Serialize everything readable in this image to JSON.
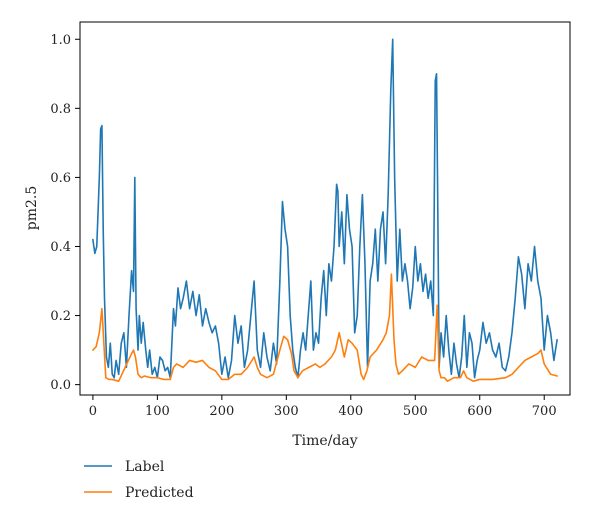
{
  "chart_data": {
    "type": "line",
    "title": "",
    "xlabel": "Time/day",
    "ylabel": "pm2.5",
    "xlim": [
      -20,
      740
    ],
    "ylim": [
      -0.03,
      1.05
    ],
    "xticks": [
      0,
      100,
      200,
      300,
      400,
      500,
      600,
      700
    ],
    "yticks": [
      0.0,
      0.2,
      0.4,
      0.6,
      0.8,
      1.0
    ],
    "xtick_labels": [
      "0",
      "100",
      "200",
      "300",
      "400",
      "500",
      "600",
      "700"
    ],
    "ytick_labels": [
      "0.0",
      "0.2",
      "0.4",
      "0.6",
      "0.8",
      "1.0"
    ],
    "grid": false,
    "legend": "below-left",
    "series": [
      {
        "name": "Label",
        "color": "#1f77b4",
        "x": [
          0,
          3,
          6,
          10,
          12,
          14,
          16,
          18,
          21,
          24,
          27,
          30,
          33,
          36,
          40,
          44,
          48,
          52,
          56,
          60,
          63,
          65,
          67,
          70,
          72,
          75,
          78,
          82,
          85,
          88,
          92,
          96,
          100,
          104,
          108,
          112,
          116,
          120,
          125,
          128,
          132,
          136,
          140,
          145,
          150,
          155,
          160,
          165,
          170,
          175,
          180,
          185,
          190,
          195,
          200,
          205,
          210,
          215,
          220,
          225,
          230,
          235,
          240,
          245,
          250,
          255,
          260,
          265,
          270,
          275,
          280,
          285,
          290,
          294,
          298,
          302,
          306,
          310,
          314,
          318,
          322,
          326,
          330,
          334,
          338,
          342,
          346,
          350,
          354,
          358,
          362,
          366,
          370,
          374,
          378,
          380,
          382,
          386,
          390,
          394,
          398,
          402,
          406,
          410,
          414,
          418,
          422,
          426,
          430,
          434,
          438,
          442,
          446,
          450,
          454,
          458,
          462,
          465,
          468,
          472,
          476,
          480,
          484,
          488,
          492,
          496,
          500,
          504,
          508,
          512,
          516,
          520,
          524,
          528,
          531,
          533,
          535,
          537,
          540,
          544,
          548,
          552,
          556,
          560,
          564,
          568,
          572,
          576,
          580,
          584,
          588,
          592,
          596,
          600,
          605,
          610,
          615,
          620,
          625,
          630,
          635,
          640,
          645,
          650,
          655,
          660,
          665,
          670,
          675,
          680,
          685,
          690,
          695,
          700,
          705,
          710,
          715,
          720
        ],
        "values": [
          0.42,
          0.38,
          0.4,
          0.6,
          0.74,
          0.75,
          0.45,
          0.25,
          0.08,
          0.05,
          0.12,
          0.03,
          0.02,
          0.07,
          0.03,
          0.12,
          0.15,
          0.05,
          0.2,
          0.33,
          0.27,
          0.6,
          0.22,
          0.1,
          0.2,
          0.12,
          0.18,
          0.1,
          0.05,
          0.1,
          0.03,
          0.05,
          0.02,
          0.08,
          0.07,
          0.04,
          0.05,
          0.02,
          0.22,
          0.17,
          0.28,
          0.22,
          0.25,
          0.3,
          0.22,
          0.27,
          0.2,
          0.26,
          0.17,
          0.22,
          0.18,
          0.15,
          0.17,
          0.12,
          0.03,
          0.08,
          0.02,
          0.07,
          0.2,
          0.12,
          0.17,
          0.05,
          0.1,
          0.2,
          0.3,
          0.1,
          0.05,
          0.15,
          0.08,
          0.04,
          0.12,
          0.06,
          0.3,
          0.53,
          0.45,
          0.4,
          0.2,
          0.1,
          0.05,
          0.02,
          0.1,
          0.15,
          0.1,
          0.2,
          0.3,
          0.1,
          0.15,
          0.12,
          0.25,
          0.33,
          0.2,
          0.35,
          0.3,
          0.4,
          0.58,
          0.56,
          0.4,
          0.5,
          0.35,
          0.55,
          0.45,
          0.4,
          0.15,
          0.2,
          0.4,
          0.55,
          0.35,
          0.05,
          0.3,
          0.35,
          0.45,
          0.3,
          0.45,
          0.5,
          0.35,
          0.55,
          0.85,
          1.0,
          0.6,
          0.3,
          0.45,
          0.3,
          0.35,
          0.3,
          0.22,
          0.28,
          0.4,
          0.3,
          0.35,
          0.27,
          0.32,
          0.25,
          0.3,
          0.2,
          0.88,
          0.9,
          0.5,
          0.05,
          0.15,
          0.08,
          0.2,
          0.1,
          0.03,
          0.12,
          0.06,
          0.02,
          0.08,
          0.2,
          0.05,
          0.15,
          0.12,
          0.02,
          0.07,
          0.1,
          0.18,
          0.12,
          0.15,
          0.1,
          0.08,
          0.12,
          0.05,
          0.04,
          0.08,
          0.15,
          0.25,
          0.37,
          0.32,
          0.22,
          0.35,
          0.3,
          0.4,
          0.3,
          0.25,
          0.1,
          0.2,
          0.15,
          0.07,
          0.13
        ]
      },
      {
        "name": "Predicted",
        "color": "#ff7f0e",
        "x": [
          0,
          5,
          10,
          14,
          17,
          20,
          25,
          30,
          40,
          50,
          55,
          60,
          63,
          66,
          70,
          75,
          80,
          90,
          100,
          110,
          120,
          125,
          130,
          140,
          150,
          160,
          170,
          180,
          190,
          200,
          210,
          220,
          230,
          240,
          250,
          255,
          260,
          270,
          280,
          290,
          296,
          302,
          308,
          312,
          318,
          325,
          335,
          345,
          352,
          360,
          370,
          376,
          382,
          390,
          396,
          402,
          410,
          416,
          420,
          425,
          430,
          440,
          450,
          455,
          460,
          463,
          467,
          470,
          474,
          480,
          490,
          500,
          510,
          520,
          530,
          534,
          537,
          540,
          545,
          550,
          560,
          570,
          575,
          580,
          590,
          600,
          620,
          640,
          650,
          660,
          670,
          680,
          690,
          695,
          700,
          710,
          720
        ],
        "values": [
          0.1,
          0.11,
          0.15,
          0.22,
          0.12,
          0.02,
          0.015,
          0.015,
          0.01,
          0.05,
          0.07,
          0.09,
          0.1,
          0.08,
          0.03,
          0.02,
          0.025,
          0.02,
          0.02,
          0.015,
          0.015,
          0.05,
          0.06,
          0.05,
          0.07,
          0.065,
          0.07,
          0.05,
          0.04,
          0.015,
          0.015,
          0.03,
          0.03,
          0.05,
          0.08,
          0.05,
          0.03,
          0.02,
          0.03,
          0.1,
          0.14,
          0.13,
          0.09,
          0.04,
          0.02,
          0.04,
          0.05,
          0.06,
          0.05,
          0.06,
          0.08,
          0.1,
          0.15,
          0.08,
          0.13,
          0.12,
          0.1,
          0.03,
          0.015,
          0.04,
          0.08,
          0.1,
          0.13,
          0.15,
          0.2,
          0.32,
          0.13,
          0.06,
          0.03,
          0.04,
          0.06,
          0.05,
          0.08,
          0.07,
          0.07,
          0.23,
          0.04,
          0.02,
          0.02,
          0.01,
          0.02,
          0.02,
          0.04,
          0.02,
          0.01,
          0.015,
          0.015,
          0.02,
          0.03,
          0.05,
          0.07,
          0.08,
          0.09,
          0.1,
          0.06,
          0.03,
          0.025
        ]
      }
    ]
  }
}
